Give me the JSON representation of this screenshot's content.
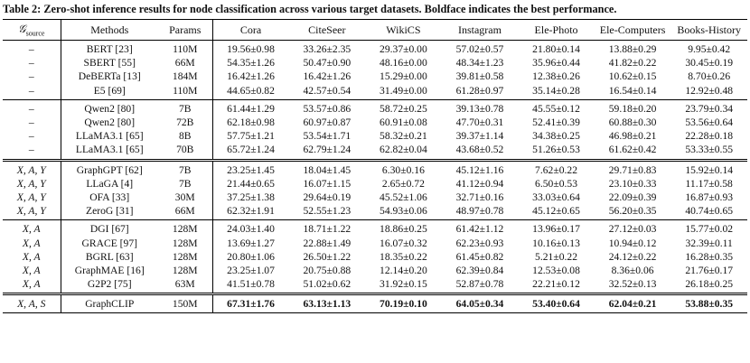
{
  "caption": "Table 2: Zero-shot inference results for node classification across various target datasets. Boldface indicates the best performance.",
  "table": {
    "header": [
      {
        "symbol": "𝒢",
        "subscript": "source"
      },
      "Methods",
      "Params",
      "Cora",
      "CiteSeer",
      "WikiCS",
      "Instagram",
      "Ele-Photo",
      "Ele-Computers",
      "Books-History"
    ],
    "groups": [
      {
        "rows": [
          [
            "–",
            "BERT [23]",
            "110M",
            "19.56±0.98",
            "33.26±2.35",
            "29.37±0.00",
            "57.02±0.57",
            "21.80±0.14",
            "13.88±0.29",
            "9.95±0.42"
          ],
          [
            "–",
            "SBERT [55]",
            "66M",
            "54.35±1.26",
            "50.47±0.90",
            "48.16±0.00",
            "48.34±1.23",
            "35.96±0.44",
            "41.82±0.22",
            "30.45±0.19"
          ],
          [
            "–",
            "DeBERTa [13]",
            "184M",
            "16.42±1.26",
            "16.42±1.26",
            "15.29±0.00",
            "39.81±0.58",
            "12.38±0.26",
            "10.62±0.15",
            "8.70±0.26"
          ],
          [
            "–",
            "E5 [69]",
            "110M",
            "44.65±0.82",
            "42.57±0.54",
            "31.49±0.00",
            "61.28±0.97",
            "35.14±0.28",
            "16.54±0.14",
            "12.92±0.48"
          ]
        ]
      },
      {
        "rows": [
          [
            "–",
            "Qwen2 [80]",
            "7B",
            "61.44±1.29",
            "53.57±0.86",
            "58.72±0.25",
            "39.13±0.78",
            "45.55±0.12",
            "59.18±0.20",
            "23.79±0.34"
          ],
          [
            "–",
            "Qwen2 [80]",
            "72B",
            "62.18±0.98",
            "60.97±0.87",
            "60.91±0.08",
            "47.70±0.31",
            "52.41±0.39",
            "60.88±0.30",
            "53.56±0.64"
          ],
          [
            "–",
            "LLaMA3.1 [65]",
            "8B",
            "57.75±1.21",
            "53.54±1.71",
            "58.32±0.21",
            "39.37±1.14",
            "34.38±0.25",
            "46.98±0.21",
            "22.28±0.18"
          ],
          [
            "–",
            "LLaMA3.1 [65]",
            "70B",
            "65.72±1.24",
            "62.79±1.24",
            "62.82±0.04",
            "43.68±0.52",
            "51.26±0.53",
            "61.62±0.42",
            "53.33±0.55"
          ]
        ]
      },
      {
        "double_top": true,
        "rows": [
          [
            "X, A, Y",
            "GraphGPT [62]",
            "7B",
            "23.25±1.45",
            "18.04±1.45",
            "6.30±0.16",
            "45.12±1.16",
            "7.62±0.22",
            "29.71±0.83",
            "15.92±0.14"
          ],
          [
            "X, A, Y",
            "LLaGA [4]",
            "7B",
            "21.44±0.65",
            "16.07±1.15",
            "2.65±0.72",
            "41.12±0.94",
            "6.50±0.53",
            "23.10±0.33",
            "11.17±0.58"
          ],
          [
            "X, A, Y",
            "OFA [33]",
            "30M",
            "37.25±1.38",
            "29.64±0.19",
            "45.52±1.06",
            "32.71±0.16",
            "33.03±0.64",
            "22.09±0.39",
            "16.87±0.93"
          ],
          [
            "X, A, Y",
            "ZeroG [31]",
            "66M",
            "62.32±1.91",
            "52.55±1.23",
            "54.93±0.06",
            "48.97±0.78",
            "45.12±0.65",
            "56.20±0.35",
            "40.74±0.65"
          ]
        ]
      },
      {
        "rows": [
          [
            "X, A",
            "DGI [67]",
            "128M",
            "24.03±1.40",
            "18.71±1.22",
            "18.86±0.25",
            "61.42±1.12",
            "13.96±0.17",
            "27.12±0.03",
            "15.77±0.02"
          ],
          [
            "X, A",
            "GRACE [97]",
            "128M",
            "13.69±1.27",
            "22.88±1.49",
            "16.07±0.32",
            "62.23±0.93",
            "10.16±0.13",
            "10.94±0.12",
            "32.39±0.11"
          ],
          [
            "X, A",
            "BGRL [63]",
            "128M",
            "20.80±1.06",
            "26.50±1.22",
            "18.35±0.22",
            "61.45±0.82",
            "5.21±0.22",
            "24.12±0.22",
            "16.28±0.35"
          ],
          [
            "X, A",
            "GraphMAE [16]",
            "128M",
            "23.25±1.07",
            "20.75±0.88",
            "12.14±0.20",
            "62.39±0.84",
            "12.53±0.08",
            "8.36±0.06",
            "21.76±0.17"
          ],
          [
            "X, A",
            "G2P2 [75]",
            "63M",
            "41.51±0.78",
            "51.02±0.62",
            "31.92±0.15",
            "52.87±0.78",
            "22.21±0.12",
            "32.52±0.13",
            "26.18±0.25"
          ]
        ]
      },
      {
        "double_top": true,
        "bold": true,
        "rows": [
          [
            "X, A, S",
            "GraphCLIP",
            "150M",
            "67.31±1.76",
            "63.13±1.13",
            "70.19±0.10",
            "64.05±0.34",
            "53.40±0.64",
            "62.04±0.21",
            "53.88±0.35"
          ]
        ]
      }
    ]
  }
}
